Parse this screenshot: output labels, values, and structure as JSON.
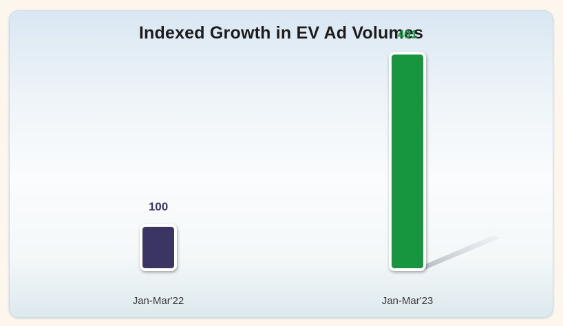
{
  "chart_data": {
    "type": "bar",
    "title": "Indexed Growth in EV Ad Volumes",
    "categories": [
      "Jan-Mar'22",
      "Jan-Mar'23"
    ],
    "values": [
      100,
      491
    ],
    "colors": [
      "#3b3564",
      "#17963f"
    ],
    "ylim": [
      0,
      540
    ],
    "xlabel": "",
    "ylabel": "",
    "grid": false,
    "legend": "none"
  }
}
